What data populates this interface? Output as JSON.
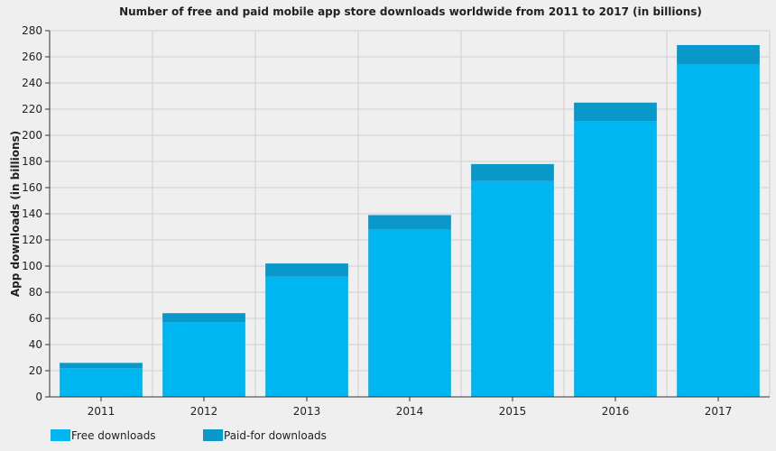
{
  "chart_data": {
    "type": "bar",
    "stacked": true,
    "title": "Number of free and paid mobile app store downloads worldwide from 2011 to 2017 (in billions)",
    "xlabel": "",
    "ylabel": "App downloads (in billions)",
    "ylim": [
      0,
      280
    ],
    "yticks": [
      0,
      20,
      40,
      60,
      80,
      100,
      120,
      140,
      160,
      180,
      200,
      220,
      240,
      260,
      280
    ],
    "categories": [
      "2011",
      "2012",
      "2013",
      "2014",
      "2015",
      "2016",
      "2017"
    ],
    "series": [
      {
        "name": "Free downloads",
        "color": "#00b6f0",
        "values": [
          22,
          57,
          92,
          128,
          165,
          211,
          254
        ]
      },
      {
        "name": "Paid-for downloads",
        "color": "#0a97c9",
        "values": [
          4,
          7,
          10,
          11,
          13,
          14,
          15
        ]
      }
    ],
    "grid": true,
    "legend_position": "bottom-left"
  }
}
